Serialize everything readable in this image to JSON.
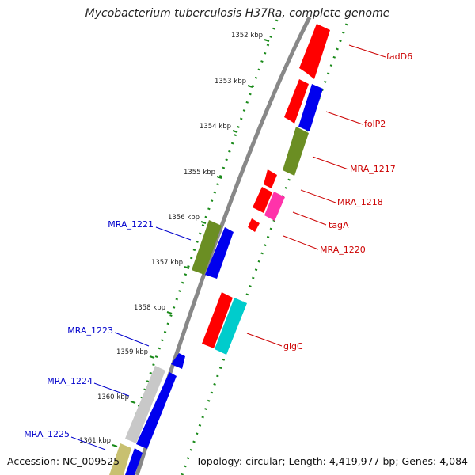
{
  "title": "Mycobacterium tuberculosis H37Ra, complete genome",
  "footer": {
    "accession": "Accession: NC_009525",
    "summary": "Topology: circular; Length: 4,419,977 bp; Genes: 4,084"
  },
  "colors": {
    "red": "#ff0000",
    "blue": "#0000ee",
    "olive": "#6b8e23",
    "magenta": "#ff33aa",
    "cyan": "#00cccc",
    "silver": "#c8c8c8",
    "khaki": "#c8c070",
    "backbone": "#888888",
    "tick_green": "#1a8a1a",
    "label_red": "#cc0000",
    "label_blue": "#0000cc"
  },
  "scale_ticks": [
    "1352 kbp",
    "1353 kbp",
    "1354 kbp",
    "1355 kbp",
    "1356 kbp",
    "1357 kbp",
    "1358 kbp",
    "1359 kbp",
    "1360 kbp",
    "1361 kbp"
  ],
  "gene_labels_right": [
    "fadD6",
    "folP2",
    "MRA_1217",
    "MRA_1218",
    "tagA",
    "MRA_1220",
    "glgC"
  ],
  "gene_labels_left": [
    "MRA_1221",
    "MRA_1223",
    "MRA_1224",
    "MRA_1225"
  ]
}
